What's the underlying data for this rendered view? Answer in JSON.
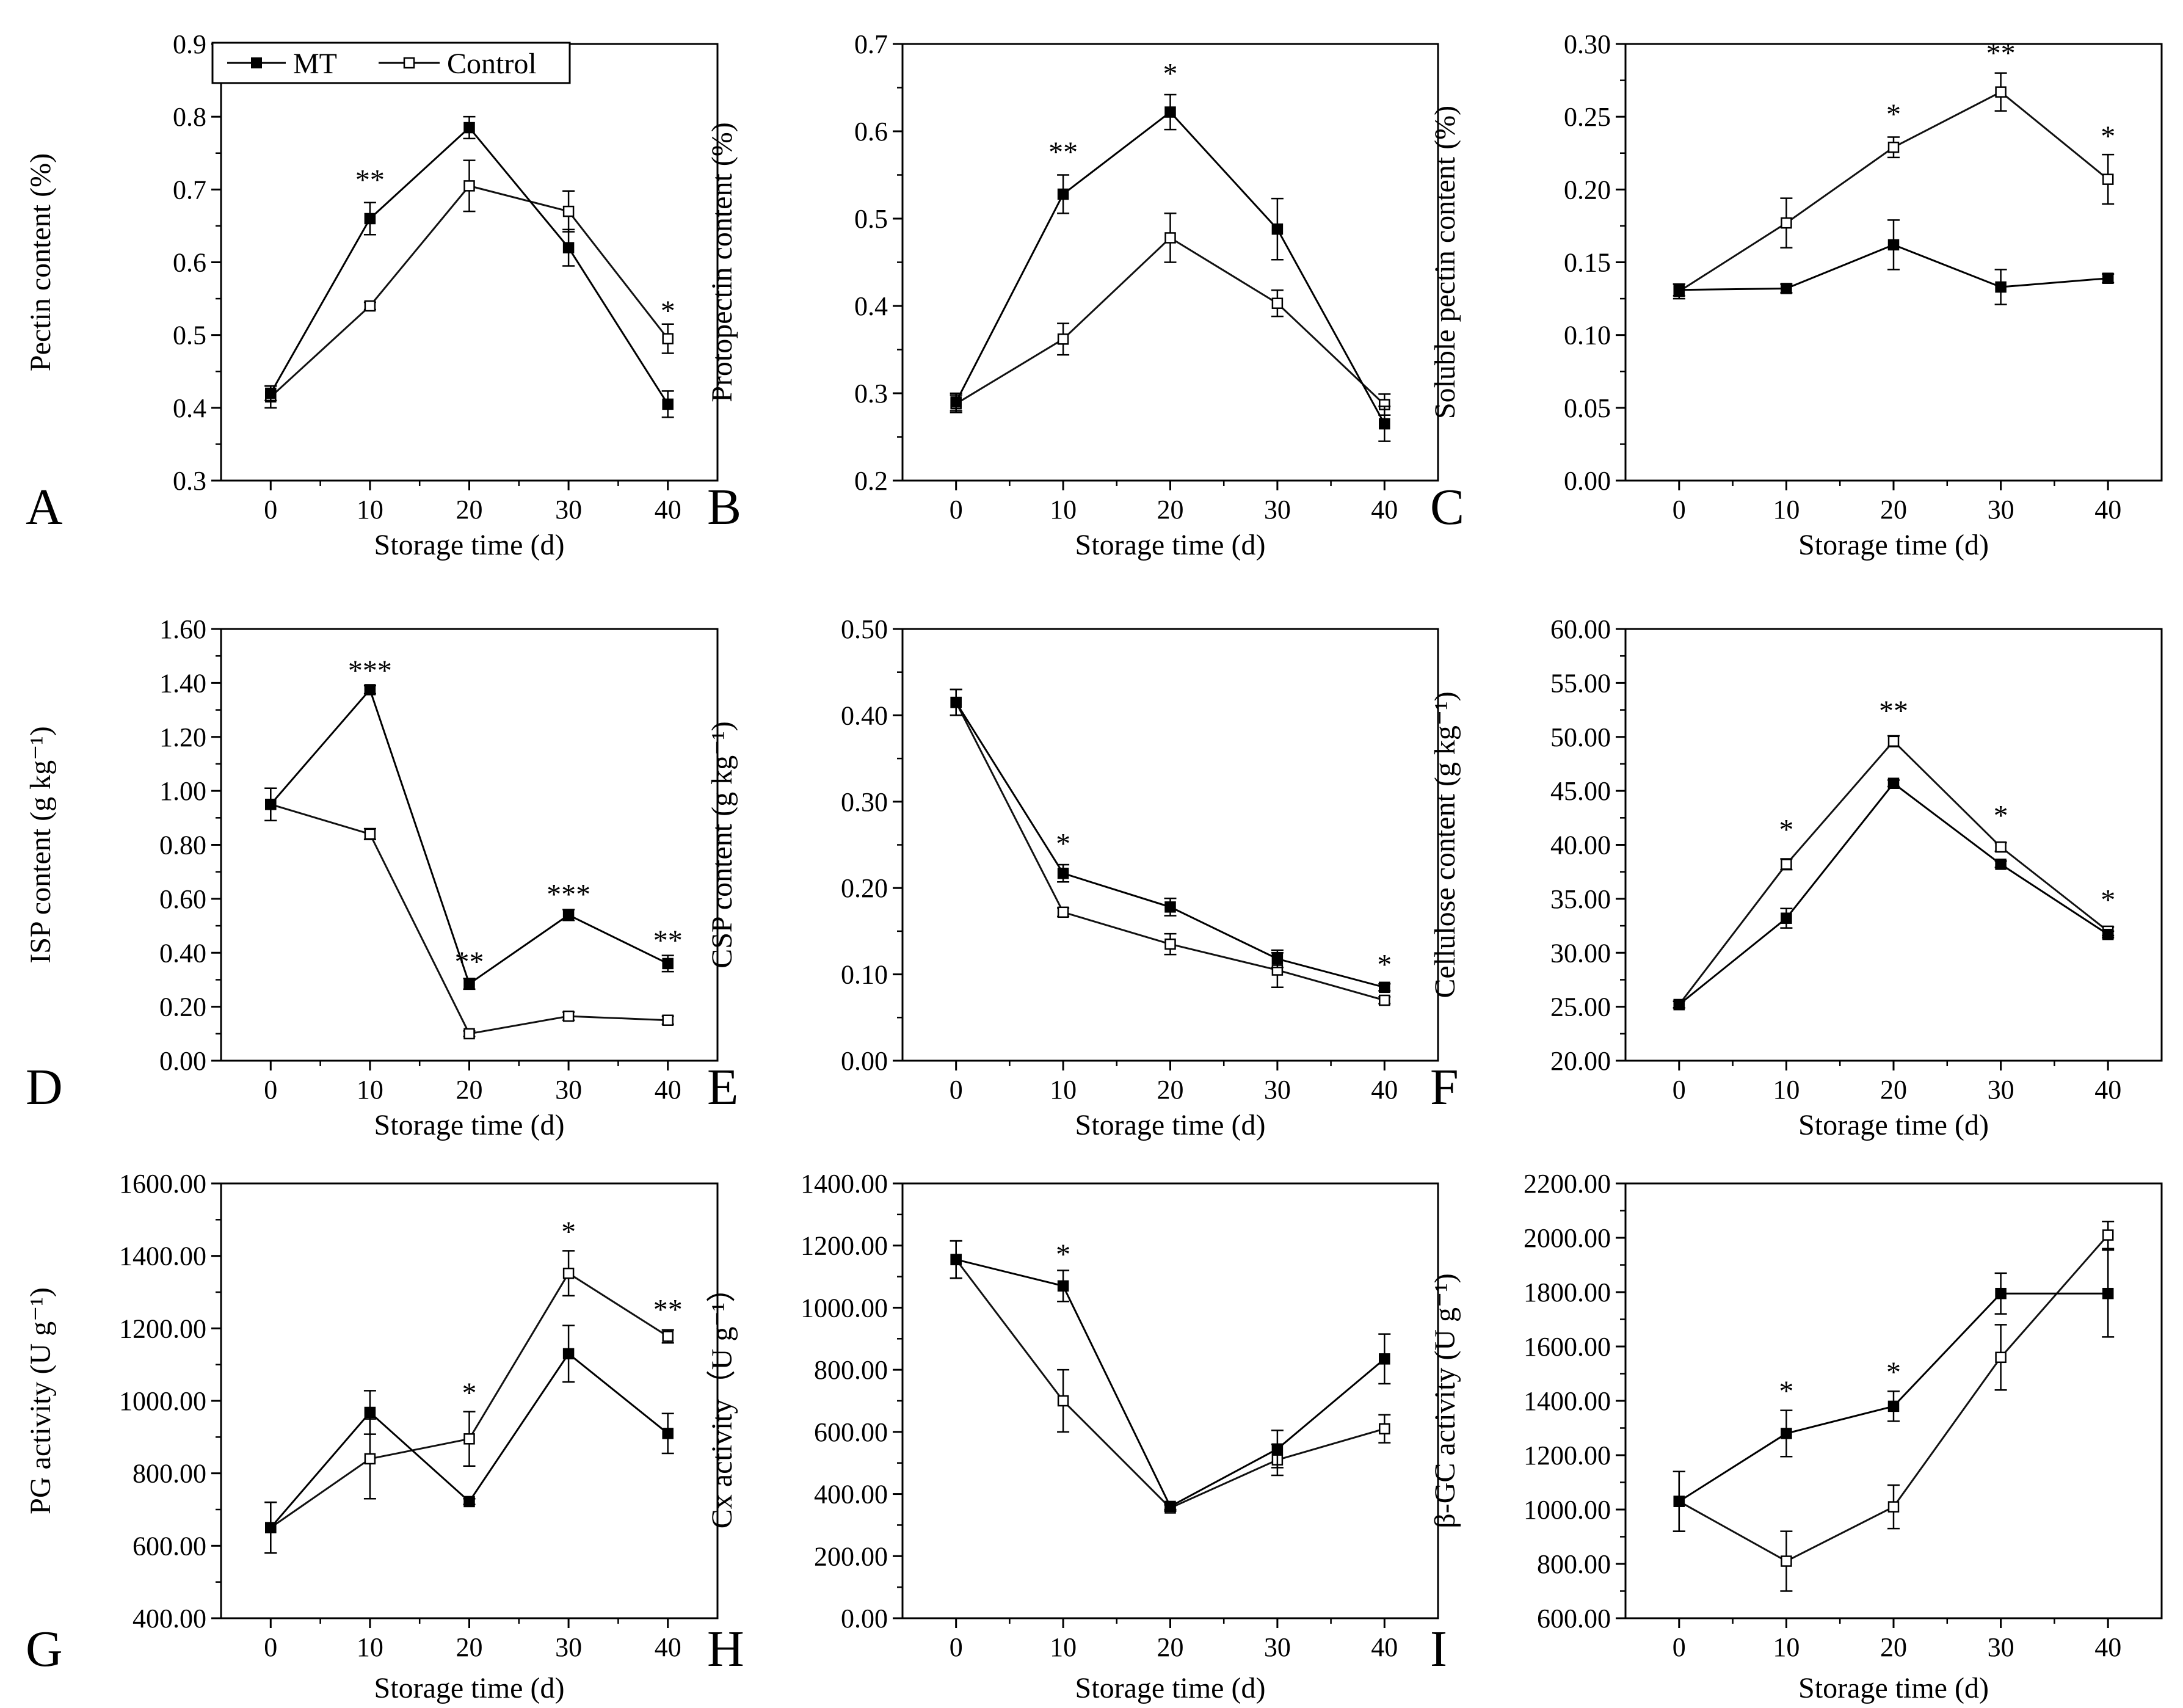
{
  "legend": {
    "entries": [
      {
        "name": "MT",
        "marker": "filled-square"
      },
      {
        "name": "Control",
        "marker": "open-square"
      }
    ]
  },
  "chart_data": [
    {
      "panel": "A",
      "type": "line",
      "ylabel": "Pectin content (%)",
      "xlabel": "Storage time (d)",
      "x": [
        0,
        10,
        20,
        30,
        40
      ],
      "ylim": [
        0.3,
        0.9
      ],
      "yticks": [
        "0.3",
        "0.4",
        "0.5",
        "0.6",
        "0.7",
        "0.8",
        "0.9"
      ],
      "series": [
        {
          "name": "MT",
          "values": [
            0.42,
            0.66,
            0.785,
            0.62,
            0.405
          ],
          "err": [
            0.01,
            0.022,
            0.015,
            0.025,
            0.018
          ]
        },
        {
          "name": "Control",
          "values": [
            0.415,
            0.54,
            0.705,
            0.67,
            0.495
          ],
          "err": [
            0.015,
            0.005,
            0.035,
            0.028,
            0.02
          ]
        }
      ],
      "annotations": [
        {
          "x": 10,
          "y": 0.7,
          "text": "**"
        },
        {
          "x": 40,
          "y": 0.52,
          "text": "*"
        }
      ]
    },
    {
      "panel": "B",
      "type": "line",
      "ylabel": "Protopectin content (%)",
      "xlabel": "Storage time (d)",
      "x": [
        0,
        10,
        20,
        30,
        40
      ],
      "ylim": [
        0.2,
        0.7
      ],
      "yticks": [
        "0.2",
        "0.3",
        "0.4",
        "0.5",
        "0.6",
        "0.7"
      ],
      "series": [
        {
          "name": "MT",
          "values": [
            0.29,
            0.528,
            0.622,
            0.488,
            0.265
          ],
          "err": [
            0.01,
            0.022,
            0.02,
            0.035,
            0.02
          ]
        },
        {
          "name": "Control",
          "values": [
            0.288,
            0.362,
            0.478,
            0.403,
            0.287
          ],
          "err": [
            0.01,
            0.018,
            0.028,
            0.015,
            0.012
          ]
        }
      ],
      "annotations": [
        {
          "x": 10,
          "y": 0.565,
          "text": "**"
        },
        {
          "x": 20,
          "y": 0.655,
          "text": "*"
        }
      ]
    },
    {
      "panel": "C",
      "type": "line",
      "ylabel": "Soluble pectin content (%)",
      "xlabel": "Storage time (d)",
      "x": [
        0,
        10,
        20,
        30,
        40
      ],
      "ylim": [
        0.0,
        0.3
      ],
      "yticks": [
        "0.00",
        "0.05",
        "0.10",
        "0.15",
        "0.20",
        "0.25",
        "0.30"
      ],
      "series": [
        {
          "name": "MT",
          "values": [
            0.131,
            0.132,
            0.162,
            0.133,
            0.139
          ],
          "err": [
            0.004,
            0.003,
            0.017,
            0.012,
            0.003
          ]
        },
        {
          "name": "Control",
          "values": [
            0.13,
            0.177,
            0.229,
            0.267,
            0.207
          ],
          "err": [
            0.005,
            0.017,
            0.007,
            0.013,
            0.017
          ]
        }
      ],
      "annotations": [
        {
          "x": 20,
          "y": 0.245,
          "text": "*"
        },
        {
          "x": 30,
          "y": 0.287,
          "text": "**"
        },
        {
          "x": 40,
          "y": 0.23,
          "text": "*"
        }
      ]
    },
    {
      "panel": "D",
      "type": "line",
      "ylabel": "ISP content (g kg⁻¹)",
      "xlabel": "Storage time (d)",
      "x": [
        0,
        10,
        20,
        30,
        40
      ],
      "ylim": [
        0.0,
        1.6
      ],
      "yticks": [
        "0.00",
        "0.20",
        "0.40",
        "0.60",
        "0.80",
        "1.00",
        "1.20",
        "1.40",
        "1.60"
      ],
      "series": [
        {
          "name": "MT",
          "values": [
            0.95,
            1.375,
            0.285,
            0.54,
            0.36
          ],
          "err": [
            0.06,
            0.015,
            0.02,
            0.02,
            0.03
          ]
        },
        {
          "name": "Control",
          "values": [
            0.95,
            0.84,
            0.1,
            0.165,
            0.15
          ],
          "err": [
            0.06,
            0.02,
            0.01,
            0.015,
            0.015
          ]
        }
      ],
      "annotations": [
        {
          "x": 10,
          "y": 1.41,
          "text": "***"
        },
        {
          "x": 20,
          "y": 0.33,
          "text": "**"
        },
        {
          "x": 30,
          "y": 0.58,
          "text": "***"
        },
        {
          "x": 40,
          "y": 0.41,
          "text": "**"
        }
      ]
    },
    {
      "panel": "E",
      "type": "line",
      "ylabel": "CSP content (g kg⁻¹)",
      "xlabel": "Storage time (d)",
      "x": [
        0,
        10,
        20,
        30,
        40
      ],
      "ylim": [
        0.0,
        0.5
      ],
      "yticks": [
        "0.00",
        "0.10",
        "0.20",
        "0.30",
        "0.40",
        "0.50"
      ],
      "series": [
        {
          "name": "MT",
          "values": [
            0.415,
            0.217,
            0.178,
            0.118,
            0.085
          ],
          "err": [
            0.015,
            0.01,
            0.01,
            0.01,
            0.004
          ]
        },
        {
          "name": "Control",
          "values": [
            0.415,
            0.172,
            0.135,
            0.105,
            0.07
          ],
          "err": [
            0.015,
            0.005,
            0.012,
            0.02,
            0.004
          ]
        }
      ],
      "annotations": [
        {
          "x": 10,
          "y": 0.24,
          "text": "*"
        },
        {
          "x": 40,
          "y": 0.1,
          "text": "*"
        }
      ]
    },
    {
      "panel": "F",
      "type": "line",
      "ylabel": "Cellulose content (g kg⁻¹)",
      "xlabel": "Storage time (d)",
      "x": [
        0,
        10,
        20,
        30,
        40
      ],
      "ylim": [
        20,
        60
      ],
      "yticks": [
        "20.00",
        "25.00",
        "30.00",
        "35.00",
        "40.00",
        "45.00",
        "50.00",
        "55.00",
        "60.00"
      ],
      "series": [
        {
          "name": "MT",
          "values": [
            25.2,
            33.2,
            45.7,
            38.2,
            31.7
          ],
          "err": [
            0.3,
            0.9,
            0.3,
            0.3,
            0.3
          ]
        },
        {
          "name": "Control",
          "values": [
            25.2,
            38.2,
            49.6,
            39.8,
            32.0
          ],
          "err": [
            0.3,
            0.5,
            0.5,
            0.4,
            0.4
          ]
        }
      ],
      "annotations": [
        {
          "x": 10,
          "y": 40.5,
          "text": "*"
        },
        {
          "x": 20,
          "y": 51.5,
          "text": "**"
        },
        {
          "x": 30,
          "y": 41.8,
          "text": "*"
        },
        {
          "x": 40,
          "y": 34.0,
          "text": "*"
        }
      ]
    },
    {
      "panel": "G",
      "type": "line",
      "ylabel": "PG activity (U g⁻¹)",
      "xlabel": "Storage time (d)",
      "x": [
        0,
        10,
        20,
        30,
        40
      ],
      "ylim": [
        400,
        1600
      ],
      "yticks": [
        "400.00",
        "600.00",
        "800.00",
        "1000.00",
        "1200.00",
        "1400.00",
        "1600.00"
      ],
      "series": [
        {
          "name": "MT",
          "values": [
            650,
            968,
            722,
            1130,
            910
          ],
          "err": [
            70,
            60,
            8,
            78,
            55
          ]
        },
        {
          "name": "Control",
          "values": [
            650,
            840,
            895,
            1352,
            1178
          ],
          "err": [
            70,
            110,
            75,
            62,
            18
          ]
        }
      ],
      "annotations": [
        {
          "x": 20,
          "y": 995,
          "text": "*"
        },
        {
          "x": 30,
          "y": 1440,
          "text": "*"
        },
        {
          "x": 40,
          "y": 1225,
          "text": "**"
        }
      ]
    },
    {
      "panel": "H",
      "type": "line",
      "ylabel": "Cx activity（U g⁻¹）",
      "xlabel": "Storage time (d)",
      "x": [
        0,
        10,
        20,
        30,
        40
      ],
      "ylim": [
        0,
        1400
      ],
      "yticks": [
        "0.00",
        "200.00",
        "400.00",
        "600.00",
        "800.00",
        "1000.00",
        "1200.00",
        "1400.00"
      ],
      "series": [
        {
          "name": "MT",
          "values": [
            1155,
            1070,
            360,
            545,
            835
          ],
          "err": [
            60,
            50,
            10,
            60,
            80
          ]
        },
        {
          "name": "Control",
          "values": [
            1155,
            700,
            355,
            510,
            610
          ],
          "err": [
            60,
            100,
            10,
            50,
            45
          ]
        }
      ],
      "annotations": [
        {
          "x": 10,
          "y": 1140,
          "text": "*"
        }
      ]
    },
    {
      "panel": "I",
      "type": "line",
      "ylabel": "β-GC activity (U g⁻¹)",
      "xlabel": "Storage time (d)",
      "x": [
        0,
        10,
        20,
        30,
        40
      ],
      "ylim": [
        600,
        2200
      ],
      "yticks": [
        "600.00",
        "800.00",
        "1000.00",
        "1200.00",
        "1400.00",
        "1600.00",
        "1800.00",
        "2000.00",
        "2200.00"
      ],
      "series": [
        {
          "name": "MT",
          "values": [
            1030,
            1280,
            1380,
            1795,
            1795
          ],
          "err": [
            110,
            85,
            55,
            75,
            160
          ]
        },
        {
          "name": "Control",
          "values": [
            1030,
            810,
            1010,
            1560,
            2010
          ],
          "err": [
            110,
            110,
            80,
            120,
            50
          ]
        }
      ],
      "annotations": [
        {
          "x": 10,
          "y": 1400,
          "text": "*"
        },
        {
          "x": 20,
          "y": 1470,
          "text": "*"
        }
      ]
    }
  ]
}
